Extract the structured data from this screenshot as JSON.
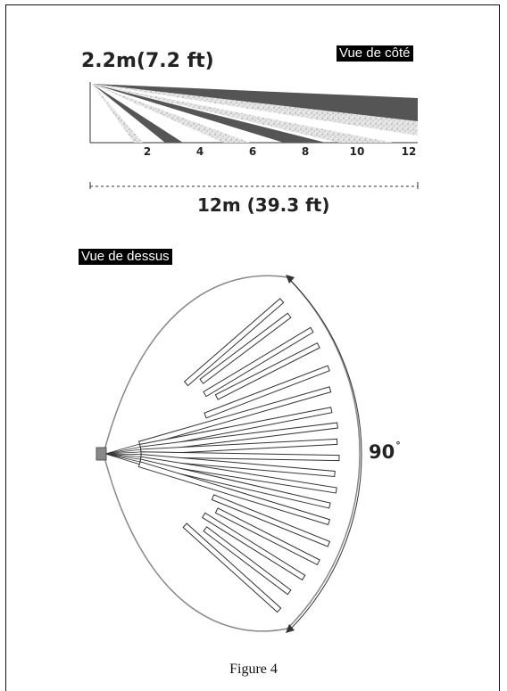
{
  "side_view": {
    "tag": "Vue de côté",
    "mount_height": "2.2m(7.2 ft)",
    "ticks": [
      "2",
      "4",
      "6",
      "8",
      "10",
      "12"
    ],
    "range": "12m (39.3 ft)"
  },
  "top_view": {
    "tag": "Vue de dessus",
    "angle": "90",
    "angle_unit": "°"
  },
  "caption": "Figure 4",
  "colors": {
    "beam": "#555555",
    "speckle": "#bbbbbb",
    "outline": "#888888"
  }
}
